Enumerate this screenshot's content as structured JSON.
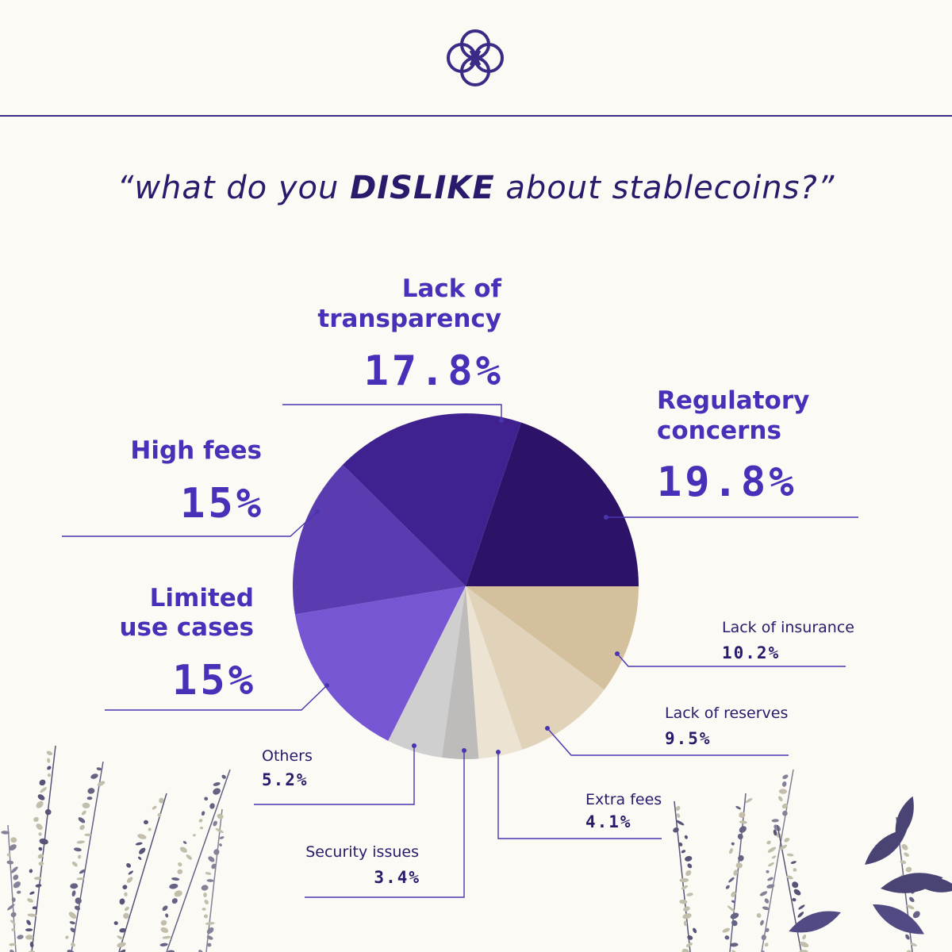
{
  "header": {
    "title_prefix": "“what do you ",
    "title_emphasis": "DISLIKE",
    "title_suffix": " about stablecoins?”"
  },
  "colors": {
    "background": "#fbfaf4",
    "brand": "#3b2a86",
    "label_accent": "#4a2fb8",
    "label_dark": "#2a1a6b",
    "leader": "#4a35b0"
  },
  "chart_data": {
    "type": "pie",
    "title": "“what do you DISLIKE about stablecoins?”",
    "start_angle": "3 o'clock, counter-clockwise",
    "slices": [
      {
        "label": "Regulatory concerns",
        "value": 19.8,
        "display": "19.8%",
        "color": "#2c1368"
      },
      {
        "label": "Lack of transparency",
        "value": 17.8,
        "display": "17.8%",
        "color": "#3f2290"
      },
      {
        "label": "High fees",
        "value": 15,
        "display": "15%",
        "color": "#5a3bb0"
      },
      {
        "label": "Limited use cases",
        "value": 15,
        "display": "15%",
        "color": "#7656d2"
      },
      {
        "label": "Others",
        "value": 5.2,
        "display": "5.2%",
        "color": "#cfcfcf"
      },
      {
        "label": "Security issues",
        "value": 3.4,
        "display": "3.4%",
        "color": "#bdbcba"
      },
      {
        "label": "Extra fees",
        "value": 4.1,
        "display": "4.1%",
        "color": "#ece3d2"
      },
      {
        "label": "Lack of reserves",
        "value": 9.5,
        "display": "9.5%",
        "color": "#e0d3ba"
      },
      {
        "label": "Lack of insurance",
        "value": 10.2,
        "display": "10.2%",
        "color": "#d4c09c"
      }
    ],
    "legend": "none"
  },
  "labels": {
    "regulatory": {
      "name_1": "Regulatory",
      "name_2": "concerns",
      "value": "19.8%"
    },
    "transparency": {
      "name_1": "Lack of",
      "name_2": "transparency",
      "value": "17.8%"
    },
    "high_fees": {
      "name": "High fees",
      "value": "15%"
    },
    "limited": {
      "name_1": "Limited",
      "name_2": "use cases",
      "value": "15%"
    },
    "insurance": {
      "name": "Lack of insurance",
      "value": "10.2%"
    },
    "reserves": {
      "name": "Lack of reserves",
      "value": "9.5%"
    },
    "others": {
      "name": "Others",
      "value": "5.2%"
    },
    "extra_fees": {
      "name": "Extra fees",
      "value": "4.1%"
    },
    "security": {
      "name": "Security issues",
      "value": "3.4%"
    }
  }
}
